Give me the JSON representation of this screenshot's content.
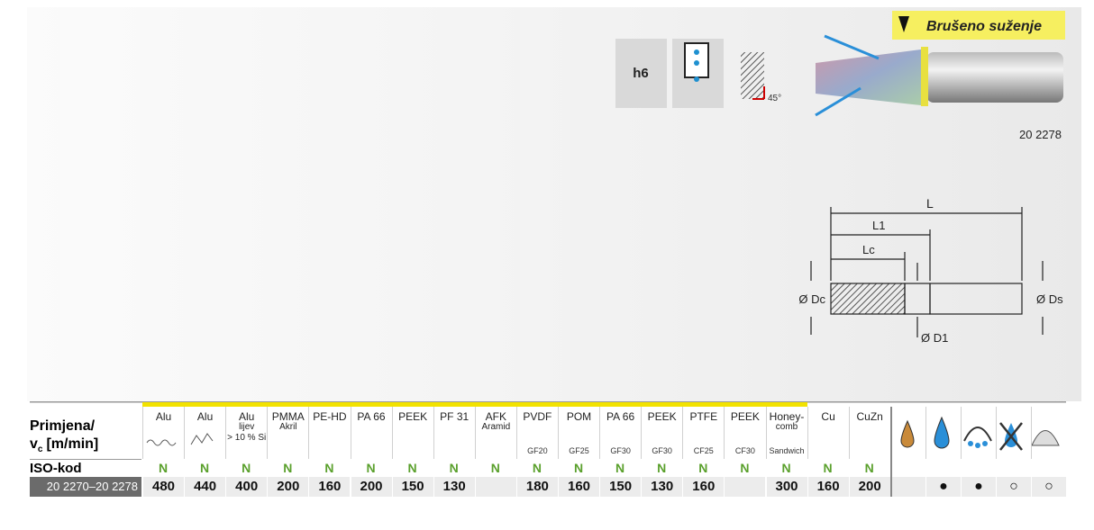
{
  "icons": {
    "tolerance": "h6",
    "angle": "45°",
    "ground_taper": "Brušeno suženje",
    "article": "20 2278"
  },
  "drawing": {
    "L": "L",
    "L1": "L1",
    "Lc": "Lc",
    "Dc": "Ø Dc",
    "Ds": "Ø Ds",
    "D1": "Ø D1"
  },
  "table": {
    "header": {
      "line1": "Primjena/",
      "v": "v",
      "sub": "c",
      "unit": "[m/min]"
    },
    "columns": [
      {
        "lines": [
          "Alu"
        ]
      },
      {
        "lines": [
          "Alu"
        ]
      },
      {
        "lines": [
          "Alu",
          "lijev",
          "> 10 % Si"
        ]
      },
      {
        "lines": [
          "PMMA",
          "Akril"
        ]
      },
      {
        "lines": [
          "PE-HD"
        ]
      },
      {
        "lines": [
          "PA 66"
        ]
      },
      {
        "lines": [
          "PEEK"
        ]
      },
      {
        "lines": [
          "PF 31"
        ]
      },
      {
        "lines": [
          "AFK",
          "Aramid"
        ]
      },
      {
        "lines": [
          "PVDF"
        ],
        "grade": "GF20"
      },
      {
        "lines": [
          "POM"
        ],
        "grade": "GF25"
      },
      {
        "lines": [
          "PA 66"
        ],
        "grade": "GF30"
      },
      {
        "lines": [
          "PEEK"
        ],
        "grade": "GF30"
      },
      {
        "lines": [
          "PTFE"
        ],
        "grade": "CF25"
      },
      {
        "lines": [
          "PEEK"
        ],
        "grade": "CF30"
      },
      {
        "lines": [
          "Honey-",
          "comb"
        ],
        "grade": "Sandwich"
      },
      {
        "lines": [
          "Cu"
        ]
      },
      {
        "lines": [
          "CuZn"
        ]
      }
    ],
    "iso_row": {
      "label": "ISO-kod",
      "values": [
        "N",
        "N",
        "N",
        "N",
        "N",
        "N",
        "N",
        "N",
        "N",
        "N",
        "N",
        "N",
        "N",
        "N",
        "N",
        "N",
        "N",
        "N"
      ]
    },
    "data_row": {
      "code": "20 2270–20 2278",
      "values": [
        480,
        440,
        400,
        200,
        160,
        200,
        150,
        130,
        null,
        180,
        160,
        150,
        130,
        160,
        null,
        300,
        160,
        200
      ],
      "cooling": [
        null,
        "●",
        "●",
        "○",
        "○"
      ]
    }
  }
}
